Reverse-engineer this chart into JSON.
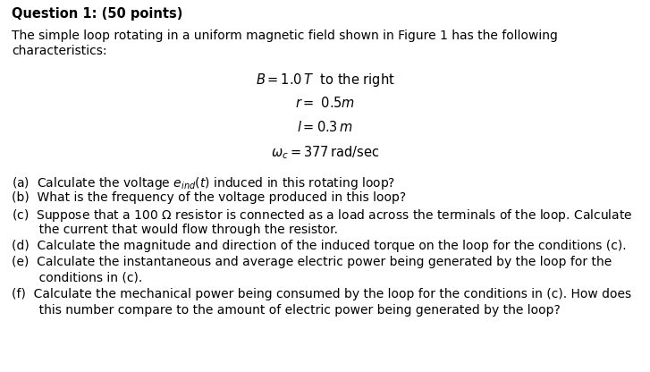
{
  "bg_color": "#ffffff",
  "text_color": "#000000",
  "title": "Question 1: (50 points)",
  "intro_line1": "The simple loop rotating in a uniform magnetic field shown in Figure 1 has the following",
  "intro_line2": "characteristics:",
  "param1": "$B = 1.0\\,T$  to the right",
  "param2": "$r =\\ 0.5m$",
  "param3": "$l = 0.3\\,m$",
  "param4": "$\\omega_c = 377\\,\\mathrm{rad/sec}$",
  "qa": "(a)  Calculate the voltage $e_{ind}(t)$ induced in this rotating loop?",
  "qb": "(b)  What is the frequency of the voltage produced in this loop?",
  "qc1": "(c)  Suppose that a 100 $\\Omega$ resistor is connected as a load across the terminals of the loop. Calculate",
  "qc2": "       the current that would flow through the resistor.",
  "qd": "(d)  Calculate the magnitude and direction of the induced torque on the loop for the conditions (c).",
  "qe1": "(e)  Calculate the instantaneous and average electric power being generated by the loop for the",
  "qe2": "       conditions in (c).",
  "qf1": "(f)  Calculate the mechanical power being consumed by the loop for the conditions in (c). How does",
  "qf2": "       this number compare to the amount of electric power being generated by the loop?",
  "title_fontsize": 10.5,
  "body_fontsize": 10.0,
  "param_fontsize": 10.5
}
